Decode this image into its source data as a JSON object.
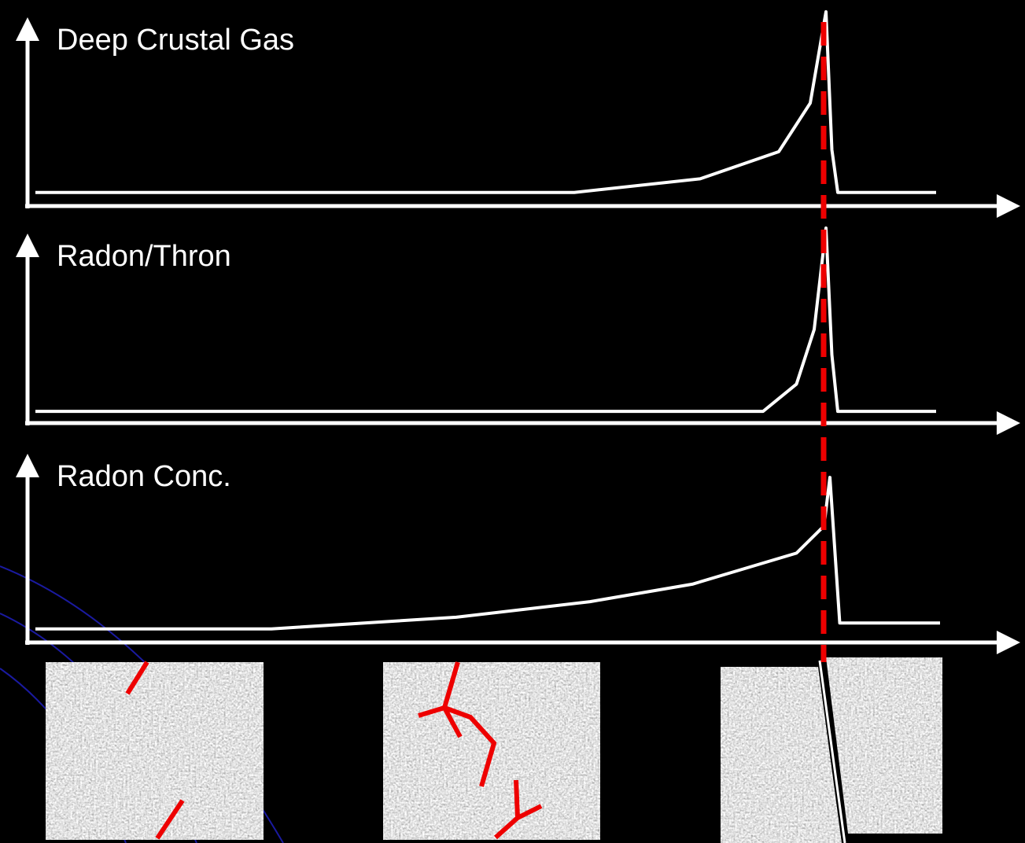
{
  "chart_data": [
    {
      "type": "line",
      "title": "Deep Crustal Gas",
      "color": "#ffffff",
      "x": [
        0.8,
        55.6,
        68.4,
        76.4,
        79.6,
        81.2,
        81.8,
        82.4,
        92.4
      ],
      "values": [
        7,
        7,
        14,
        28,
        53,
        100,
        29,
        7,
        7
      ],
      "xlim": [
        0,
        100
      ],
      "ylim": [
        0,
        100
      ]
    },
    {
      "type": "line",
      "title": "Radon/Thron",
      "color": "#ffffff",
      "x": [
        0.8,
        74.8,
        78.2,
        80,
        81.2,
        81.8,
        82.4,
        92.4
      ],
      "values": [
        6,
        6,
        20,
        48,
        100,
        35,
        6,
        6
      ],
      "xlim": [
        0,
        100
      ],
      "ylim": [
        0,
        100
      ]
    },
    {
      "type": "line",
      "title": "Radon Conc.",
      "color": "#ffffff",
      "x": [
        0.8,
        24.8,
        43.6,
        57.2,
        67.6,
        78.2,
        81,
        81.6,
        82.6,
        92.8
      ],
      "values": [
        7,
        7,
        13,
        21,
        30,
        46,
        60,
        85,
        10,
        10
      ],
      "xlim": [
        0,
        100
      ],
      "ylim": [
        0,
        100
      ]
    }
  ]
}
